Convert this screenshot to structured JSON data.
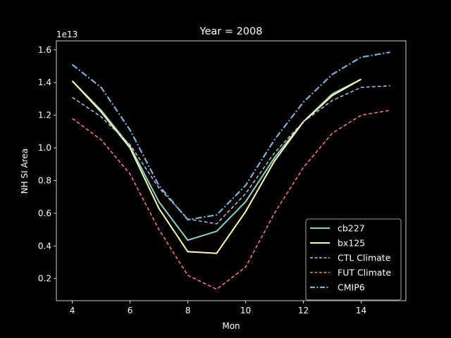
{
  "chart_data": {
    "type": "line",
    "title": "Year = 2008",
    "xlabel": "Mon",
    "ylabel": "NH SI Area",
    "offset_label": "1e13",
    "xlim": [
      3.45,
      15.55
    ],
    "ylim": [
      0.065,
      1.655
    ],
    "x_ticks": [
      4,
      6,
      8,
      10,
      12,
      14
    ],
    "y_ticks": [
      0.2,
      0.4,
      0.6,
      0.8,
      1.0,
      1.2,
      1.4,
      1.6
    ],
    "grid": false,
    "legend_position": "lower-right",
    "series": [
      {
        "name": "cb227",
        "color": "#8dd3c7",
        "style": "solid",
        "x": [
          4,
          5,
          6,
          7,
          8,
          9,
          10,
          11,
          12,
          13,
          14
        ],
        "values": [
          1.41,
          1.23,
          1.01,
          0.67,
          0.435,
          0.49,
          0.67,
          0.94,
          1.16,
          1.33,
          1.42
        ]
      },
      {
        "name": "bx125",
        "color": "#ffffb3",
        "style": "solid",
        "x": [
          4,
          5,
          6,
          7,
          8,
          9,
          10,
          11,
          12,
          13,
          14
        ],
        "values": [
          1.41,
          1.22,
          1.0,
          0.63,
          0.365,
          0.355,
          0.61,
          0.92,
          1.16,
          1.32,
          1.42
        ]
      },
      {
        "name": "CTL Climate",
        "color": "#bebada",
        "style": "dashed",
        "x": [
          4,
          5,
          6,
          7,
          8,
          9,
          10,
          11,
          12,
          13,
          14,
          15
        ],
        "values": [
          1.31,
          1.19,
          1.02,
          0.755,
          0.565,
          0.535,
          0.72,
          0.97,
          1.16,
          1.29,
          1.37,
          1.38
        ]
      },
      {
        "name": "FUT Climate",
        "color": "#fb8072",
        "style": "dashed",
        "x": [
          4,
          5,
          6,
          7,
          8,
          9,
          10,
          11,
          12,
          13,
          14,
          15
        ],
        "values": [
          1.18,
          1.05,
          0.84,
          0.5,
          0.22,
          0.135,
          0.27,
          0.6,
          0.88,
          1.09,
          1.2,
          1.23
        ]
      },
      {
        "name": "CMIP6",
        "color": "#80b1d3",
        "style": "dashdot",
        "x": [
          4,
          5,
          6,
          7,
          8,
          9,
          10,
          11,
          12,
          13,
          14,
          15
        ],
        "values": [
          1.51,
          1.37,
          1.11,
          0.77,
          0.56,
          0.59,
          0.77,
          1.05,
          1.28,
          1.45,
          1.555,
          1.585
        ]
      }
    ]
  }
}
